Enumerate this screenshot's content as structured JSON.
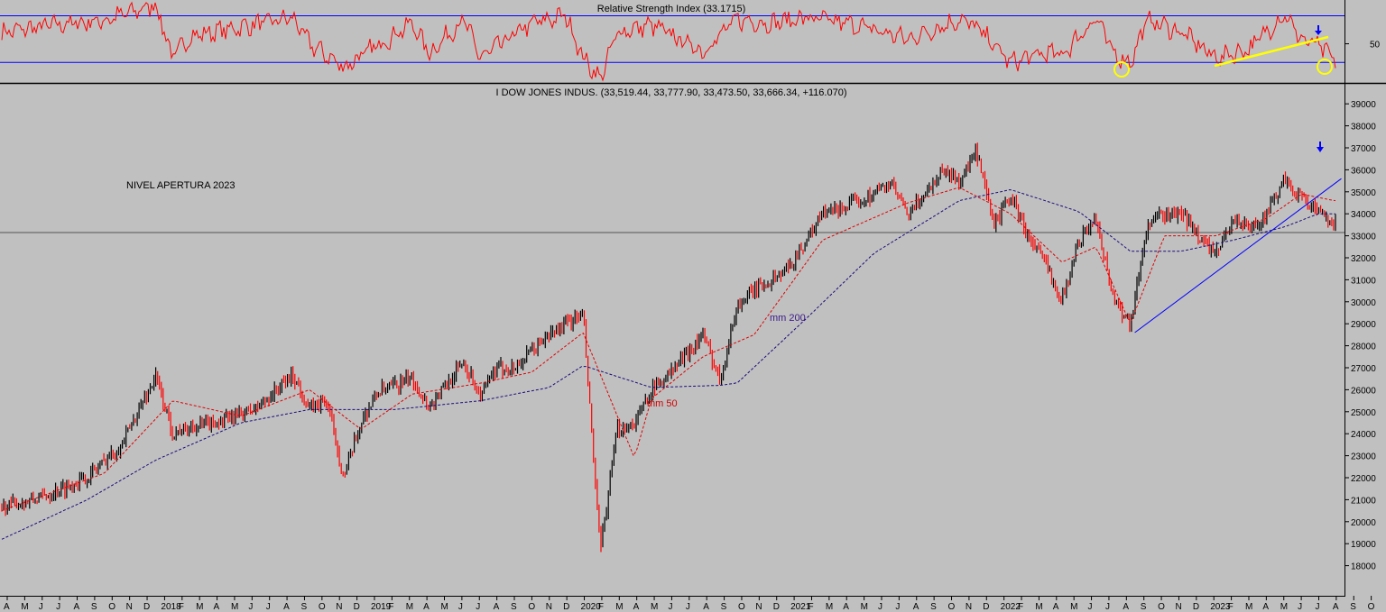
{
  "chart_data": [
    {
      "type": "line",
      "title": "Relative Strength Index (33.1715)",
      "ylim": [
        10,
        95
      ],
      "y_ticks": [
        50
      ],
      "bands": [
        80,
        30
      ],
      "colors": {
        "line": "#ff0000",
        "band": "#0000ff",
        "trendline": "#ffff00",
        "circle": "#ffff00",
        "arrow": "#0000ff"
      },
      "series": [
        {
          "x": [
            "2017-04",
            "2017-07",
            "2017-10",
            "2018-01",
            "2018-02",
            "2018-03",
            "2018-06",
            "2018-09",
            "2018-10",
            "2018-12",
            "2019-04",
            "2019-05",
            "2019-07",
            "2019-08",
            "2019-11",
            "2020-01",
            "2020-02",
            "2020-03",
            "2020-04",
            "2020-06",
            "2020-09",
            "2020-11",
            "2021-01",
            "2021-03",
            "2021-06",
            "2021-09",
            "2021-12",
            "2022-01",
            "2022-03",
            "2022-05",
            "2022-06",
            "2022-08",
            "2022-09",
            "2022-10",
            "2022-11",
            "2023-01",
            "2023-03",
            "2023-05",
            "2023-07",
            "2023-08",
            "2023-09",
            "2023-09-29"
          ],
          "values": [
            62,
            70,
            75,
            92,
            35,
            58,
            68,
            78,
            50,
            25,
            72,
            40,
            76,
            35,
            72,
            80,
            35,
            12,
            62,
            70,
            42,
            76,
            72,
            78,
            70,
            55,
            76,
            68,
            30,
            40,
            38,
            78,
            40,
            30,
            76,
            62,
            35,
            45,
            82,
            55,
            48,
            33
          ]
        }
      ]
    },
    {
      "type": "line",
      "title": "I DOW JONES INDUS. (33,519.44, 33,777.90, 33,473.50, 33,666.34, +116.070)",
      "ylim": [
        17000,
        39500
      ],
      "y_ticks": [
        18000,
        19000,
        20000,
        21000,
        22000,
        23000,
        24000,
        25000,
        26000,
        27000,
        28000,
        29000,
        30000,
        31000,
        32000,
        33000,
        34000,
        35000,
        36000,
        37000,
        38000,
        39000
      ],
      "x_labels": [
        "A",
        "M",
        "J",
        "J",
        "A",
        "S",
        "O",
        "N",
        "D",
        "2018",
        "F",
        "M",
        "A",
        "M",
        "J",
        "J",
        "A",
        "S",
        "O",
        "N",
        "D",
        "2019",
        "F",
        "M",
        "A",
        "M",
        "J",
        "J",
        "A",
        "S",
        "O",
        "N",
        "D",
        "2020",
        "F",
        "M",
        "A",
        "M",
        "J",
        "J",
        "A",
        "S",
        "O",
        "N",
        "D",
        "2021",
        "F",
        "M",
        "A",
        "M",
        "J",
        "J",
        "A",
        "S",
        "O",
        "N",
        "D",
        "2022",
        "F",
        "M",
        "A",
        "M",
        "J",
        "J",
        "A",
        "S",
        "O",
        "N",
        "D",
        "2023",
        "F",
        "M",
        "A",
        "M",
        "J",
        "J",
        "A",
        "S",
        "O"
      ],
      "x_range": [
        "2017-04",
        "2023-10"
      ],
      "annotations": {
        "level_label": "NIVEL APERTURA 2023",
        "level_value": 33147,
        "ma50_label": "mm 50",
        "ma200_label": "mm 200"
      },
      "colors": {
        "price": "#000000",
        "price_down": "#ff0000",
        "ma50": "#ff0000",
        "ma200": "#000080",
        "trendline": "#0000ff",
        "level": "#606060",
        "arrow": "#0000ff"
      },
      "series": [
        {
          "name": "price",
          "x": [
            "2017-04",
            "2017-06",
            "2017-09",
            "2017-11",
            "2018-01",
            "2018-02",
            "2018-03",
            "2018-05",
            "2018-07",
            "2018-09",
            "2018-10",
            "2018-11",
            "2018-12",
            "2019-01",
            "2019-02",
            "2019-04",
            "2019-05",
            "2019-07",
            "2019-08",
            "2019-09",
            "2019-10",
            "2019-12",
            "2020-01",
            "2020-02",
            "2020-03",
            "2020-04",
            "2020-05",
            "2020-06",
            "2020-07",
            "2020-09",
            "2020-10",
            "2020-11",
            "2020-12",
            "2021-02",
            "2021-04",
            "2021-06",
            "2021-08",
            "2021-09",
            "2021-11",
            "2021-12",
            "2022-01",
            "2022-02",
            "2022-03",
            "2022-04",
            "2022-05",
            "2022-06",
            "2022-07",
            "2022-08",
            "2022-09",
            "2022-10",
            "2022-11",
            "2022-12",
            "2023-01",
            "2023-02",
            "2023-03",
            "2023-04",
            "2023-05",
            "2023-06",
            "2023-07",
            "2023-08",
            "2023-09",
            "2023-09-29"
          ],
          "values": [
            20700,
            21000,
            22000,
            23500,
            26600,
            24000,
            24300,
            24600,
            25200,
            26700,
            25100,
            25500,
            22000,
            24500,
            25900,
            26500,
            25200,
            27300,
            25700,
            27000,
            27000,
            28500,
            29000,
            29400,
            18600,
            24200,
            24500,
            26000,
            26700,
            28500,
            26500,
            29800,
            30500,
            31500,
            34000,
            34500,
            35400,
            33900,
            36000,
            35500,
            36800,
            33500,
            34800,
            33000,
            31800,
            30100,
            32800,
            33800,
            30200,
            29000,
            33500,
            34000,
            34000,
            33000,
            32100,
            33800,
            33300,
            34000,
            35500,
            34800,
            34000,
            33666
          ]
        },
        {
          "name": "mm 50",
          "x": [
            "2017-04",
            "2017-10",
            "2018-02",
            "2018-06",
            "2018-10",
            "2019-01",
            "2019-04",
            "2019-08",
            "2019-11",
            "2020-02",
            "2020-05",
            "2020-06",
            "2020-09",
            "2020-12",
            "2021-04",
            "2021-09",
            "2021-12",
            "2022-03",
            "2022-06",
            "2022-08",
            "2022-10",
            "2022-12",
            "2023-03",
            "2023-06",
            "2023-08",
            "2023-09-29"
          ],
          "values": [
            20500,
            22200,
            25500,
            24800,
            26000,
            24200,
            25800,
            26300,
            26800,
            28600,
            22900,
            25600,
            27500,
            28500,
            32800,
            34500,
            35200,
            34000,
            31800,
            32500,
            29000,
            33000,
            33000,
            33800,
            34900,
            34600
          ]
        },
        {
          "name": "mm 200",
          "x": [
            "2017-04",
            "2017-09",
            "2018-01",
            "2018-06",
            "2018-10",
            "2019-03",
            "2019-08",
            "2019-12",
            "2020-02",
            "2020-06",
            "2020-10",
            "2020-11",
            "2021-03",
            "2021-07",
            "2021-12",
            "2022-03",
            "2022-07",
            "2022-10",
            "2023-01",
            "2023-04",
            "2023-07",
            "2023-09",
            "2023-09-29"
          ],
          "values": [
            19200,
            21000,
            22800,
            24500,
            25100,
            25100,
            25500,
            26100,
            27100,
            26100,
            26200,
            26300,
            29200,
            32200,
            34600,
            35100,
            34100,
            32300,
            32300,
            32800,
            33400,
            34000,
            34000
          ]
        },
        {
          "name": "trendline",
          "x": [
            "2022-10",
            "2023-09-29"
          ],
          "values": [
            28600,
            35600
          ]
        }
      ]
    }
  ]
}
